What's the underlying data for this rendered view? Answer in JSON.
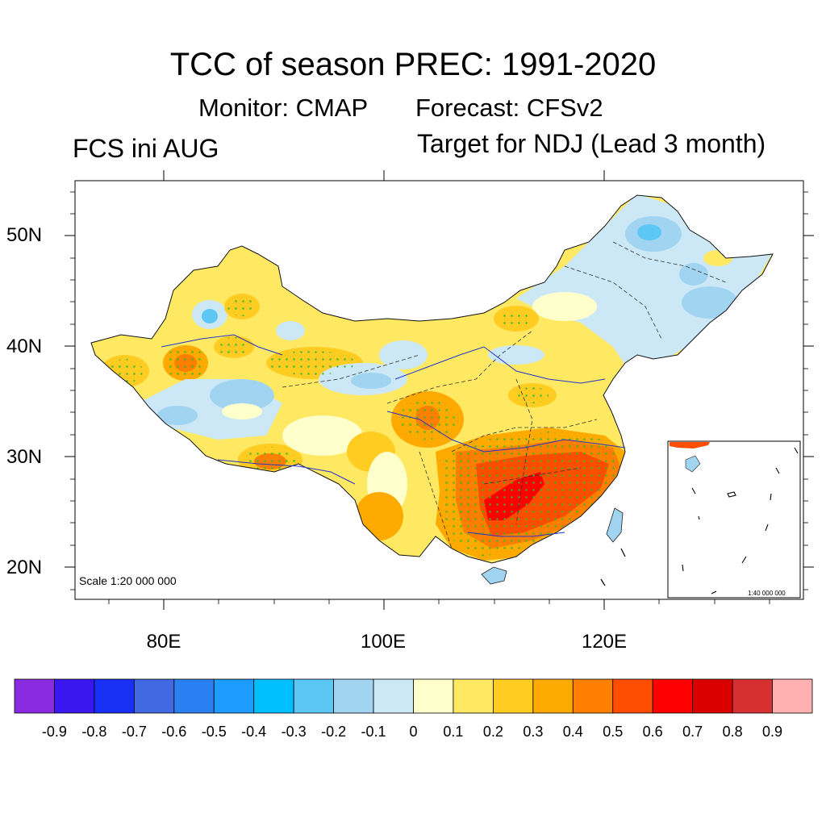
{
  "title": "TCC of season PREC: 1991-2020",
  "subtitle_left": "Monitor: CMAP",
  "subtitle_right": "Forecast: CFSv2",
  "left_label": "FCS ini AUG",
  "right_label": "Target for NDJ (Lead 3 month)",
  "scale_main": "Scale 1:20 000 000",
  "scale_inset": "1:40 000 000",
  "lat_labels": [
    "50N",
    "40N",
    "30N",
    "20N"
  ],
  "lon_labels": [
    "80E",
    "100E",
    "120E"
  ],
  "colorbar": {
    "colors": [
      "#8a2be2",
      "#3a16f0",
      "#1830f5",
      "#4169e1",
      "#2a80f0",
      "#1e9bff",
      "#00bfff",
      "#5cc6f5",
      "#a0d4f0",
      "#cce8f7",
      "#ffffcc",
      "#ffe963",
      "#ffcc22",
      "#ffaa00",
      "#ff8000",
      "#ff4e00",
      "#ff0000",
      "#db0000",
      "#d73030",
      "#ffb0b0"
    ],
    "labels": [
      "-0.9",
      "-0.8",
      "-0.7",
      "-0.6",
      "-0.5",
      "-0.4",
      "-0.3",
      "-0.2",
      "-0.1",
      "0",
      "0.1",
      "0.2",
      "0.3",
      "0.4",
      "0.5",
      "0.6",
      "0.7",
      "0.8",
      "0.9"
    ]
  }
}
